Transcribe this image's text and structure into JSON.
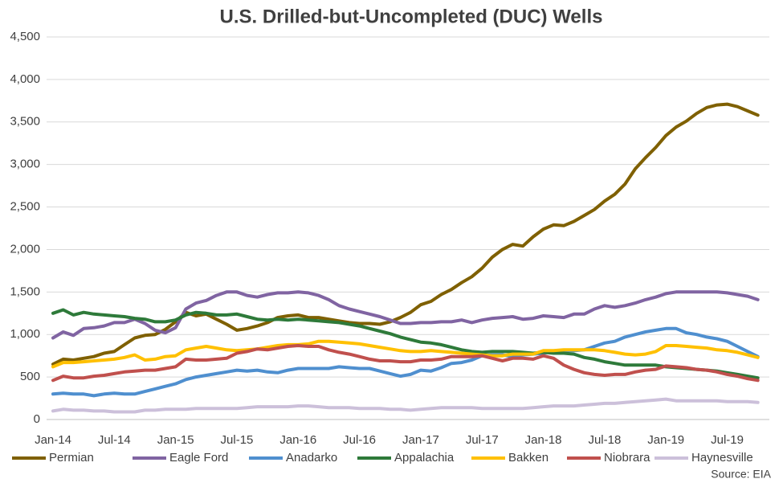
{
  "chart_data": {
    "type": "line",
    "title": "U.S. Drilled-but-Uncompleted (DUC) Wells",
    "source": "Source: EIA",
    "categories": [
      "Jan-14",
      null,
      null,
      null,
      null,
      null,
      "Jul-14",
      null,
      null,
      null,
      null,
      null,
      "Jan-15",
      null,
      null,
      null,
      null,
      null,
      "Jul-15",
      null,
      null,
      null,
      null,
      null,
      "Jan-16",
      null,
      null,
      null,
      null,
      null,
      "Jul-16",
      null,
      null,
      null,
      null,
      null,
      "Jan-17",
      null,
      null,
      null,
      null,
      null,
      "Jul-17",
      null,
      null,
      null,
      null,
      null,
      "Jan-18",
      null,
      null,
      null,
      null,
      null,
      "Jul-18",
      null,
      null,
      null,
      null,
      null,
      "Jan-19",
      null,
      null,
      null,
      null,
      null,
      "Jul-19",
      null,
      null,
      null
    ],
    "ylim": [
      0,
      4500
    ],
    "yticks": [
      0,
      500,
      {
        "value": 1000,
        "label": "1,000"
      },
      {
        "value": 1500,
        "label": "1,500"
      },
      {
        "value": 2000,
        "label": "2,000"
      },
      {
        "value": 2500,
        "label": "2,500"
      },
      {
        "value": 3000,
        "label": "3,000"
      },
      {
        "value": 3500,
        "label": "3,500"
      },
      {
        "value": 4000,
        "label": "4,000"
      },
      {
        "value": 4500,
        "label": "4,500"
      }
    ],
    "grid": true,
    "series": [
      {
        "name": "Permian",
        "color": "#7f6000",
        "values": [
          650,
          710,
          700,
          720,
          740,
          780,
          800,
          880,
          960,
          990,
          1000,
          1060,
          1150,
          1260,
          1220,
          1240,
          1180,
          1120,
          1050,
          1070,
          1100,
          1140,
          1200,
          1220,
          1230,
          1200,
          1200,
          1180,
          1160,
          1140,
          1130,
          1130,
          1120,
          1150,
          1200,
          1260,
          1350,
          1390,
          1470,
          1530,
          1610,
          1680,
          1780,
          1910,
          2000,
          2060,
          2040,
          2150,
          2240,
          2290,
          2280,
          2330,
          2400,
          2470,
          2570,
          2650,
          2770,
          2950,
          3080,
          3200,
          3340,
          3440,
          3510,
          3600,
          3670,
          3700,
          3710,
          3680,
          3630,
          3580
        ]
      },
      {
        "name": "Eagle Ford",
        "color": "#8064a2",
        "values": [
          960,
          1030,
          990,
          1070,
          1080,
          1100,
          1140,
          1140,
          1180,
          1130,
          1050,
          1020,
          1080,
          1300,
          1370,
          1400,
          1460,
          1500,
          1500,
          1460,
          1440,
          1470,
          1490,
          1490,
          1500,
          1490,
          1460,
          1410,
          1340,
          1300,
          1270,
          1240,
          1210,
          1170,
          1130,
          1130,
          1140,
          1140,
          1150,
          1150,
          1170,
          1140,
          1170,
          1190,
          1200,
          1210,
          1180,
          1190,
          1220,
          1210,
          1200,
          1240,
          1240,
          1300,
          1340,
          1320,
          1340,
          1370,
          1410,
          1440,
          1480,
          1500,
          1500,
          1500,
          1500,
          1500,
          1490,
          1470,
          1450,
          1410
        ]
      },
      {
        "name": "Anadarko",
        "color": "#4f8fcf",
        "values": [
          300,
          310,
          300,
          300,
          280,
          300,
          310,
          300,
          300,
          330,
          360,
          390,
          420,
          470,
          500,
          520,
          540,
          560,
          580,
          570,
          580,
          560,
          550,
          580,
          600,
          600,
          600,
          600,
          620,
          610,
          600,
          600,
          570,
          540,
          510,
          530,
          580,
          570,
          610,
          660,
          670,
          700,
          750,
          760,
          760,
          740,
          760,
          770,
          780,
          800,
          810,
          810,
          820,
          860,
          900,
          920,
          970,
          1000,
          1030,
          1050,
          1070,
          1070,
          1020,
          1000,
          970,
          950,
          920,
          860,
          800,
          740
        ]
      },
      {
        "name": "Appalachia",
        "color": "#2e7a3a",
        "values": [
          1250,
          1290,
          1230,
          1260,
          1240,
          1230,
          1220,
          1210,
          1190,
          1180,
          1150,
          1150,
          1170,
          1230,
          1260,
          1250,
          1230,
          1230,
          1240,
          1210,
          1180,
          1170,
          1180,
          1170,
          1180,
          1170,
          1160,
          1150,
          1140,
          1120,
          1100,
          1070,
          1040,
          1010,
          970,
          940,
          910,
          900,
          880,
          850,
          820,
          800,
          790,
          800,
          800,
          800,
          790,
          780,
          790,
          780,
          780,
          770,
          730,
          710,
          680,
          660,
          640,
          640,
          640,
          640,
          620,
          610,
          600,
          590,
          580,
          570,
          550,
          530,
          510,
          490
        ]
      },
      {
        "name": "Bakken",
        "color": "#ffc000",
        "values": [
          620,
          670,
          670,
          680,
          690,
          700,
          710,
          730,
          760,
          700,
          710,
          740,
          750,
          820,
          840,
          860,
          840,
          820,
          810,
          820,
          830,
          850,
          870,
          880,
          880,
          890,
          920,
          920,
          910,
          900,
          890,
          870,
          850,
          830,
          810,
          800,
          800,
          810,
          800,
          790,
          780,
          770,
          760,
          750,
          750,
          770,
          770,
          770,
          810,
          810,
          820,
          820,
          820,
          820,
          810,
          790,
          770,
          760,
          770,
          800,
          870,
          870,
          860,
          850,
          840,
          820,
          810,
          790,
          760,
          730
        ]
      },
      {
        "name": "Niobrara",
        "color": "#c0504d",
        "values": [
          460,
          510,
          490,
          490,
          510,
          520,
          540,
          560,
          570,
          580,
          580,
          600,
          620,
          710,
          700,
          700,
          710,
          720,
          780,
          800,
          830,
          820,
          840,
          860,
          870,
          860,
          860,
          820,
          790,
          770,
          740,
          710,
          690,
          690,
          680,
          680,
          700,
          700,
          710,
          740,
          740,
          740,
          750,
          720,
          690,
          720,
          720,
          710,
          750,
          720,
          640,
          590,
          550,
          530,
          520,
          530,
          530,
          560,
          580,
          590,
          630,
          620,
          610,
          590,
          580,
          560,
          530,
          510,
          480,
          460
        ]
      },
      {
        "name": "Haynesville",
        "color": "#ccc0da",
        "values": [
          100,
          120,
          110,
          110,
          100,
          100,
          90,
          90,
          90,
          110,
          110,
          120,
          120,
          120,
          130,
          130,
          130,
          130,
          130,
          140,
          150,
          150,
          150,
          150,
          160,
          160,
          150,
          140,
          140,
          140,
          130,
          130,
          130,
          120,
          120,
          110,
          120,
          130,
          140,
          140,
          140,
          140,
          130,
          130,
          130,
          130,
          130,
          140,
          150,
          160,
          160,
          160,
          170,
          180,
          190,
          190,
          200,
          210,
          220,
          230,
          240,
          220,
          220,
          220,
          220,
          220,
          210,
          210,
          210,
          200
        ]
      }
    ]
  }
}
